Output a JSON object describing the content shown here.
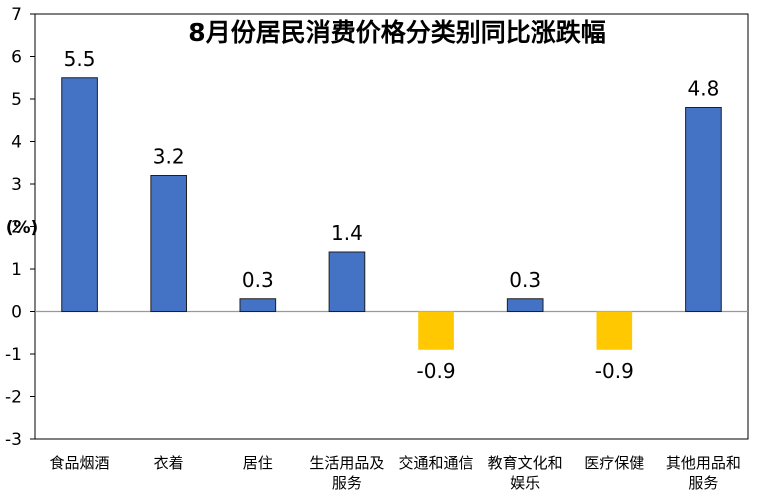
{
  "chart_data": {
    "type": "bar",
    "title": "8月份居民消费价格分类别同比涨跌幅",
    "ylabel": "(%)",
    "xlabel": "",
    "ylim": [
      -3,
      7
    ],
    "yticks": [
      -3,
      -2,
      -1,
      0,
      1,
      2,
      3,
      4,
      5,
      6,
      7
    ],
    "categories": [
      [
        "食品烟酒"
      ],
      [
        "衣着"
      ],
      [
        "居住"
      ],
      [
        "生活用品及",
        "服务"
      ],
      [
        "交通和通信"
      ],
      [
        "教育文化和",
        "娱乐"
      ],
      [
        "医疗保健"
      ],
      [
        "其他用品和",
        "服务"
      ]
    ],
    "values": [
      5.5,
      3.2,
      0.3,
      1.4,
      -0.9,
      0.3,
      -0.9,
      4.8
    ],
    "data_labels": [
      "5.5",
      "3.2",
      "0.3",
      "1.4",
      "-0.9",
      "0.3",
      "-0.9",
      "4.8"
    ],
    "colors": {
      "positive": "#4472C4",
      "negative": "#FFC800"
    },
    "grid": false,
    "legend": "none"
  }
}
